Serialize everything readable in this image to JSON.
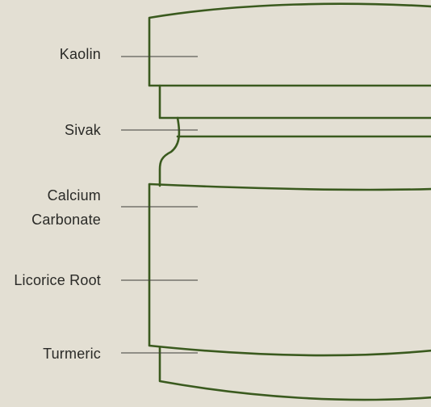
{
  "labels": {
    "kaolin": "Kaolin",
    "sivak": "Sivak",
    "calcium_line1": "Calcium",
    "calcium_line2": "Carbonate",
    "licorice": "Licorice Root",
    "turmeric": "Turmeric"
  },
  "colors": {
    "background": "#e3dfd3",
    "outline": "#3a5a1e",
    "leader": "#3d3d38",
    "text": "#2a2a27"
  }
}
